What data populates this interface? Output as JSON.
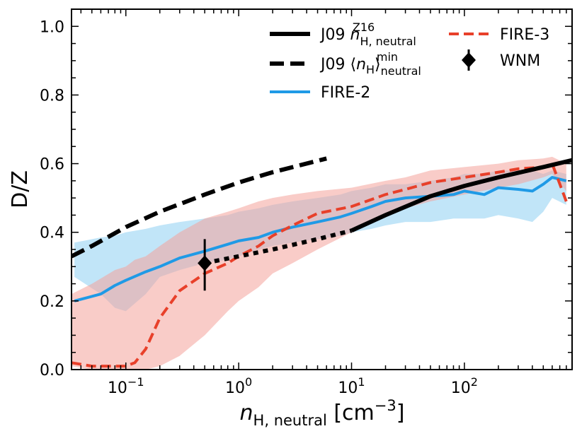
{
  "chart_data": {
    "type": "line",
    "title": "",
    "xlabel": "n_H,neutral [cm^-3]",
    "ylabel": "D/Z",
    "xscale": "log",
    "xlim": [
      0.033,
      900
    ],
    "ylim": [
      0.0,
      1.05
    ],
    "yticks": [
      {
        "value": 0.0,
        "label": "0.0"
      },
      {
        "value": 0.2,
        "label": "0.2"
      },
      {
        "value": 0.4,
        "label": "0.4"
      },
      {
        "value": 0.6,
        "label": "0.6"
      },
      {
        "value": 0.8,
        "label": "0.8"
      },
      {
        "value": 1.0,
        "label": "1.0"
      }
    ],
    "xticks": [
      {
        "value": 0.1,
        "base": "10",
        "exp": "−1"
      },
      {
        "value": 1,
        "base": "10",
        "exp": "0"
      },
      {
        "value": 10,
        "base": "10",
        "exp": "1"
      },
      {
        "value": 100,
        "base": "10",
        "exp": "2"
      }
    ],
    "legend_position": "top-right",
    "series": [
      {
        "name": "FIRE-2",
        "color": "#1f9ae6",
        "style": "solid",
        "band_color": "#8ecff2",
        "x": [
          0.035,
          0.06,
          0.08,
          0.1,
          0.15,
          0.2,
          0.3,
          0.5,
          0.8,
          1,
          1.5,
          2,
          3,
          5,
          8,
          10,
          15,
          20,
          30,
          50,
          80,
          100,
          150,
          200,
          300,
          400,
          500,
          600,
          800
        ],
        "values": [
          0.2,
          0.22,
          0.245,
          0.26,
          0.285,
          0.3,
          0.325,
          0.345,
          0.365,
          0.375,
          0.385,
          0.4,
          0.415,
          0.43,
          0.445,
          0.455,
          0.475,
          0.49,
          0.5,
          0.505,
          0.51,
          0.52,
          0.51,
          0.53,
          0.525,
          0.52,
          0.54,
          0.56,
          0.55
        ],
        "band_upper": [
          0.37,
          0.385,
          0.39,
          0.4,
          0.41,
          0.42,
          0.43,
          0.44,
          0.45,
          0.46,
          0.47,
          0.48,
          0.49,
          0.5,
          0.51,
          0.52,
          0.53,
          0.54,
          0.54,
          0.55,
          0.56,
          0.57,
          0.57,
          0.58,
          0.58,
          0.58,
          0.57,
          0.58,
          0.57
        ],
        "band_lower": [
          0.27,
          0.22,
          0.18,
          0.17,
          0.22,
          0.27,
          0.29,
          0.31,
          0.32,
          0.33,
          0.35,
          0.36,
          0.37,
          0.38,
          0.39,
          0.4,
          0.41,
          0.42,
          0.43,
          0.43,
          0.44,
          0.44,
          0.44,
          0.45,
          0.44,
          0.43,
          0.46,
          0.5,
          0.48
        ]
      },
      {
        "name": "FIRE-3",
        "color": "#e8402a",
        "style": "dashed",
        "band_color": "#f4a39a",
        "x": [
          0.033,
          0.05,
          0.08,
          0.1,
          0.12,
          0.15,
          0.2,
          0.3,
          0.5,
          0.8,
          1,
          1.5,
          2,
          3,
          5,
          10,
          20,
          30,
          50,
          100,
          200,
          300,
          500,
          600,
          800
        ],
        "values": [
          0.02,
          0.01,
          0.01,
          0.01,
          0.02,
          0.06,
          0.15,
          0.23,
          0.28,
          0.31,
          0.33,
          0.36,
          0.39,
          0.42,
          0.455,
          0.475,
          0.51,
          0.525,
          0.545,
          0.56,
          0.575,
          0.585,
          0.59,
          0.6,
          0.49
        ],
        "band_upper": [
          0.22,
          0.25,
          0.29,
          0.3,
          0.32,
          0.33,
          0.36,
          0.4,
          0.44,
          0.46,
          0.47,
          0.49,
          0.5,
          0.51,
          0.52,
          0.53,
          0.55,
          0.56,
          0.58,
          0.59,
          0.6,
          0.61,
          0.615,
          0.62,
          0.6
        ],
        "band_lower": [
          0.01,
          0.0,
          0.0,
          0.0,
          0.0,
          0.0,
          0.01,
          0.04,
          0.1,
          0.17,
          0.2,
          0.24,
          0.28,
          0.31,
          0.35,
          0.4,
          0.45,
          0.47,
          0.49,
          0.51,
          0.53,
          0.54,
          0.56,
          0.57,
          0.52
        ]
      },
      {
        "name": "J09 n_H,neutral^Z16",
        "color": "#000000",
        "style": "solid",
        "x": [
          10,
          20,
          50,
          100,
          200,
          500,
          900
        ],
        "values": [
          0.405,
          0.45,
          0.505,
          0.535,
          0.56,
          0.59,
          0.61
        ]
      },
      {
        "name": "J09 n_H,neutral^Z16 (extrapolated)",
        "color": "#000000",
        "style": "dotted",
        "x": [
          0.5,
          1,
          2,
          5,
          10
        ],
        "values": [
          0.31,
          0.33,
          0.35,
          0.38,
          0.405
        ]
      },
      {
        "name": "J09 ⟨n_H⟩_neutral^min",
        "color": "#000000",
        "style": "dashed",
        "x": [
          0.033,
          0.05,
          0.1,
          0.2,
          0.5,
          1,
          2,
          6
        ],
        "values": [
          0.33,
          0.36,
          0.415,
          0.46,
          0.51,
          0.545,
          0.575,
          0.615
        ]
      }
    ],
    "points": [
      {
        "name": "WNM",
        "x": 0.5,
        "y": 0.31,
        "yerr_low": 0.23,
        "yerr_high": 0.38,
        "marker": "diamond",
        "color": "#000000"
      }
    ],
    "legend": [
      {
        "key": "j09_z16",
        "text": "J09 ",
        "math": "n",
        "sub": "H, neutral",
        "sup": "Z16"
      },
      {
        "key": "fire3",
        "text": "FIRE-3"
      },
      {
        "key": "j09_min",
        "text": "J09 ⟨",
        "math": "n",
        "sub1": "H",
        "mid": "⟩",
        "sub": "neutral",
        "sup": "min"
      },
      {
        "key": "wnm",
        "text": "WNM"
      },
      {
        "key": "fire2",
        "text": "FIRE-2"
      }
    ],
    "axis_titles": {
      "y": "D/Z",
      "x_var": "n",
      "x_sub": "H, neutral",
      "x_unit": " [cm",
      "x_unit_exp": "−3",
      "x_unit_close": "]"
    }
  }
}
